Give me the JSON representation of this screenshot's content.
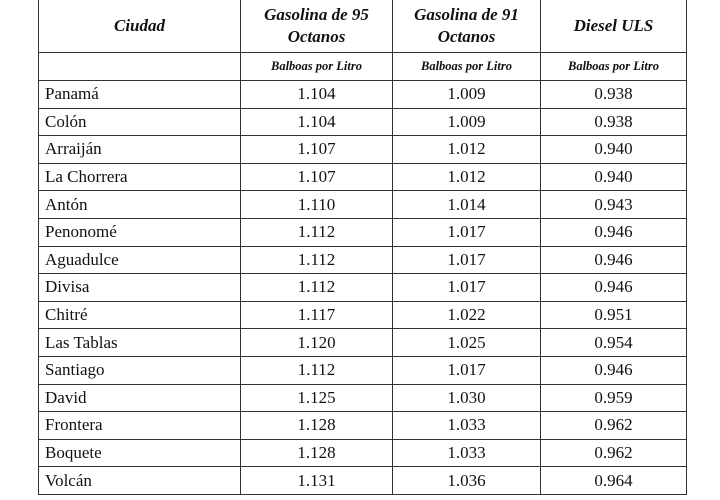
{
  "table": {
    "header": [
      "Ciudad",
      "Gasolina de 95 Octanos",
      "Gasolina de 91 Octanos",
      "Diesel ULS"
    ],
    "units": [
      "Balboas por Litro",
      "Balboas por Litro",
      "Balboas por Litro"
    ],
    "rows": [
      [
        "Panamá",
        "1.104",
        "1.009",
        "0.938"
      ],
      [
        "Colón",
        "1.104",
        "1.009",
        "0.938"
      ],
      [
        "Arraiján",
        "1.107",
        "1.012",
        "0.940"
      ],
      [
        "La Chorrera",
        "1.107",
        "1.012",
        "0.940"
      ],
      [
        "Antón",
        "1.110",
        "1.014",
        "0.943"
      ],
      [
        "Penonomé",
        "1.112",
        "1.017",
        "0.946"
      ],
      [
        "Aguadulce",
        "1.112",
        "1.017",
        "0.946"
      ],
      [
        "Divisa",
        "1.112",
        "1.017",
        "0.946"
      ],
      [
        "Chitré",
        "1.117",
        "1.022",
        "0.951"
      ],
      [
        "Las Tablas",
        "1.120",
        "1.025",
        "0.954"
      ],
      [
        "Santiago",
        "1.112",
        "1.017",
        "0.946"
      ],
      [
        "David",
        "1.125",
        "1.030",
        "0.959"
      ],
      [
        "Frontera",
        "1.128",
        "1.033",
        "0.962"
      ],
      [
        "Boquete",
        "1.128",
        "1.033",
        "0.962"
      ],
      [
        "Volcán",
        "1.131",
        "1.036",
        "0.964"
      ]
    ]
  }
}
